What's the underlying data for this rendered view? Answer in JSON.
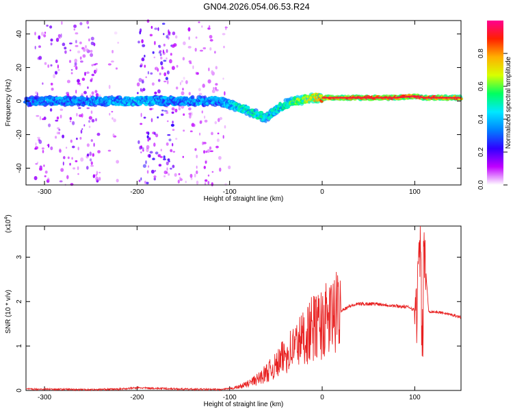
{
  "figure_title": "GN04.2026.054.06.53.R24",
  "chart_data": [
    {
      "type": "heatmap",
      "xlabel": "Height of straight line (km)",
      "ylabel": "Frequency (Hz)",
      "xlim": [
        -320,
        150
      ],
      "ylim": [
        -50,
        48
      ],
      "x_ticks": [
        -300,
        -200,
        -100,
        0,
        100
      ],
      "y_ticks": [
        -40,
        -20,
        0,
        20,
        40
      ],
      "colorbar": {
        "label": "Normalized spectral amplitude",
        "range": [
          0.0,
          1.0
        ],
        "ticks": [
          0.0,
          0.2,
          0.4,
          0.6,
          0.8
        ],
        "colors": [
          "#ffffff",
          "#c000ff",
          "#3000ff",
          "#0080ff",
          "#00e8ff",
          "#00ff60",
          "#d8ff00",
          "#ffb000",
          "#ff2000",
          "#ff0090"
        ]
      },
      "ridge": {
        "x": [
          -320,
          -300,
          -250,
          -200,
          -150,
          -110,
          -100,
          -90,
          -80,
          -70,
          -60,
          -50,
          -40,
          -30,
          -20,
          -10,
          0,
          20,
          50,
          80,
          100,
          110,
          150
        ],
        "y": [
          0,
          0,
          0,
          0,
          0,
          0,
          -2,
          -4,
          -6,
          -8,
          -10,
          -5,
          -2,
          0,
          1,
          2,
          2,
          2,
          2,
          2,
          3,
          2,
          2
        ],
        "amplitude": [
          0.35,
          0.4,
          0.4,
          0.45,
          0.4,
          0.42,
          0.45,
          0.5,
          0.55,
          0.55,
          0.5,
          0.5,
          0.55,
          0.6,
          0.7,
          0.75,
          0.85,
          0.9,
          0.92,
          0.9,
          0.95,
          0.9,
          0.85
        ]
      },
      "noise_bands": [
        {
          "x_range": [
            -310,
            -240
          ],
          "level": 0.15
        },
        {
          "x_range": [
            -230,
            -220
          ],
          "level": 0.08
        },
        {
          "x_range": [
            -200,
            -160
          ],
          "level": 0.2
        },
        {
          "x_range": [
            -160,
            -100
          ],
          "level": 0.1
        }
      ]
    },
    {
      "type": "line",
      "xlabel": "Height of straight line (km)",
      "ylabel": "SNR (10 * v/v)",
      "multiplier": "(x10",
      "multiplier_exp": "4",
      "multiplier_close": ")",
      "xlim": [
        -320,
        150
      ],
      "ylim": [
        0,
        3.7
      ],
      "x_ticks": [
        -300,
        -200,
        -100,
        0,
        100
      ],
      "y_ticks": [
        0,
        1,
        2,
        3
      ],
      "series": [
        {
          "color": "#e82020",
          "x": [
            -320,
            -300,
            -250,
            -220,
            -200,
            -150,
            -110,
            -100,
            -90,
            -80,
            -70,
            -60,
            -50,
            -40,
            -30,
            -20,
            -10,
            0,
            10,
            20,
            30,
            40,
            60,
            80,
            95,
            100,
            103,
            106,
            108,
            110,
            115,
            130,
            150
          ],
          "y": [
            0.03,
            0.03,
            0.02,
            0.03,
            0.06,
            0.03,
            0.02,
            0.04,
            0.08,
            0.15,
            0.25,
            0.4,
            0.55,
            0.8,
            1.0,
            1.2,
            1.4,
            1.5,
            1.65,
            1.8,
            1.9,
            1.95,
            1.95,
            1.9,
            1.87,
            1.8,
            2.0,
            3.6,
            0.5,
            3.3,
            1.78,
            1.75,
            1.65
          ]
        }
      ]
    }
  ]
}
